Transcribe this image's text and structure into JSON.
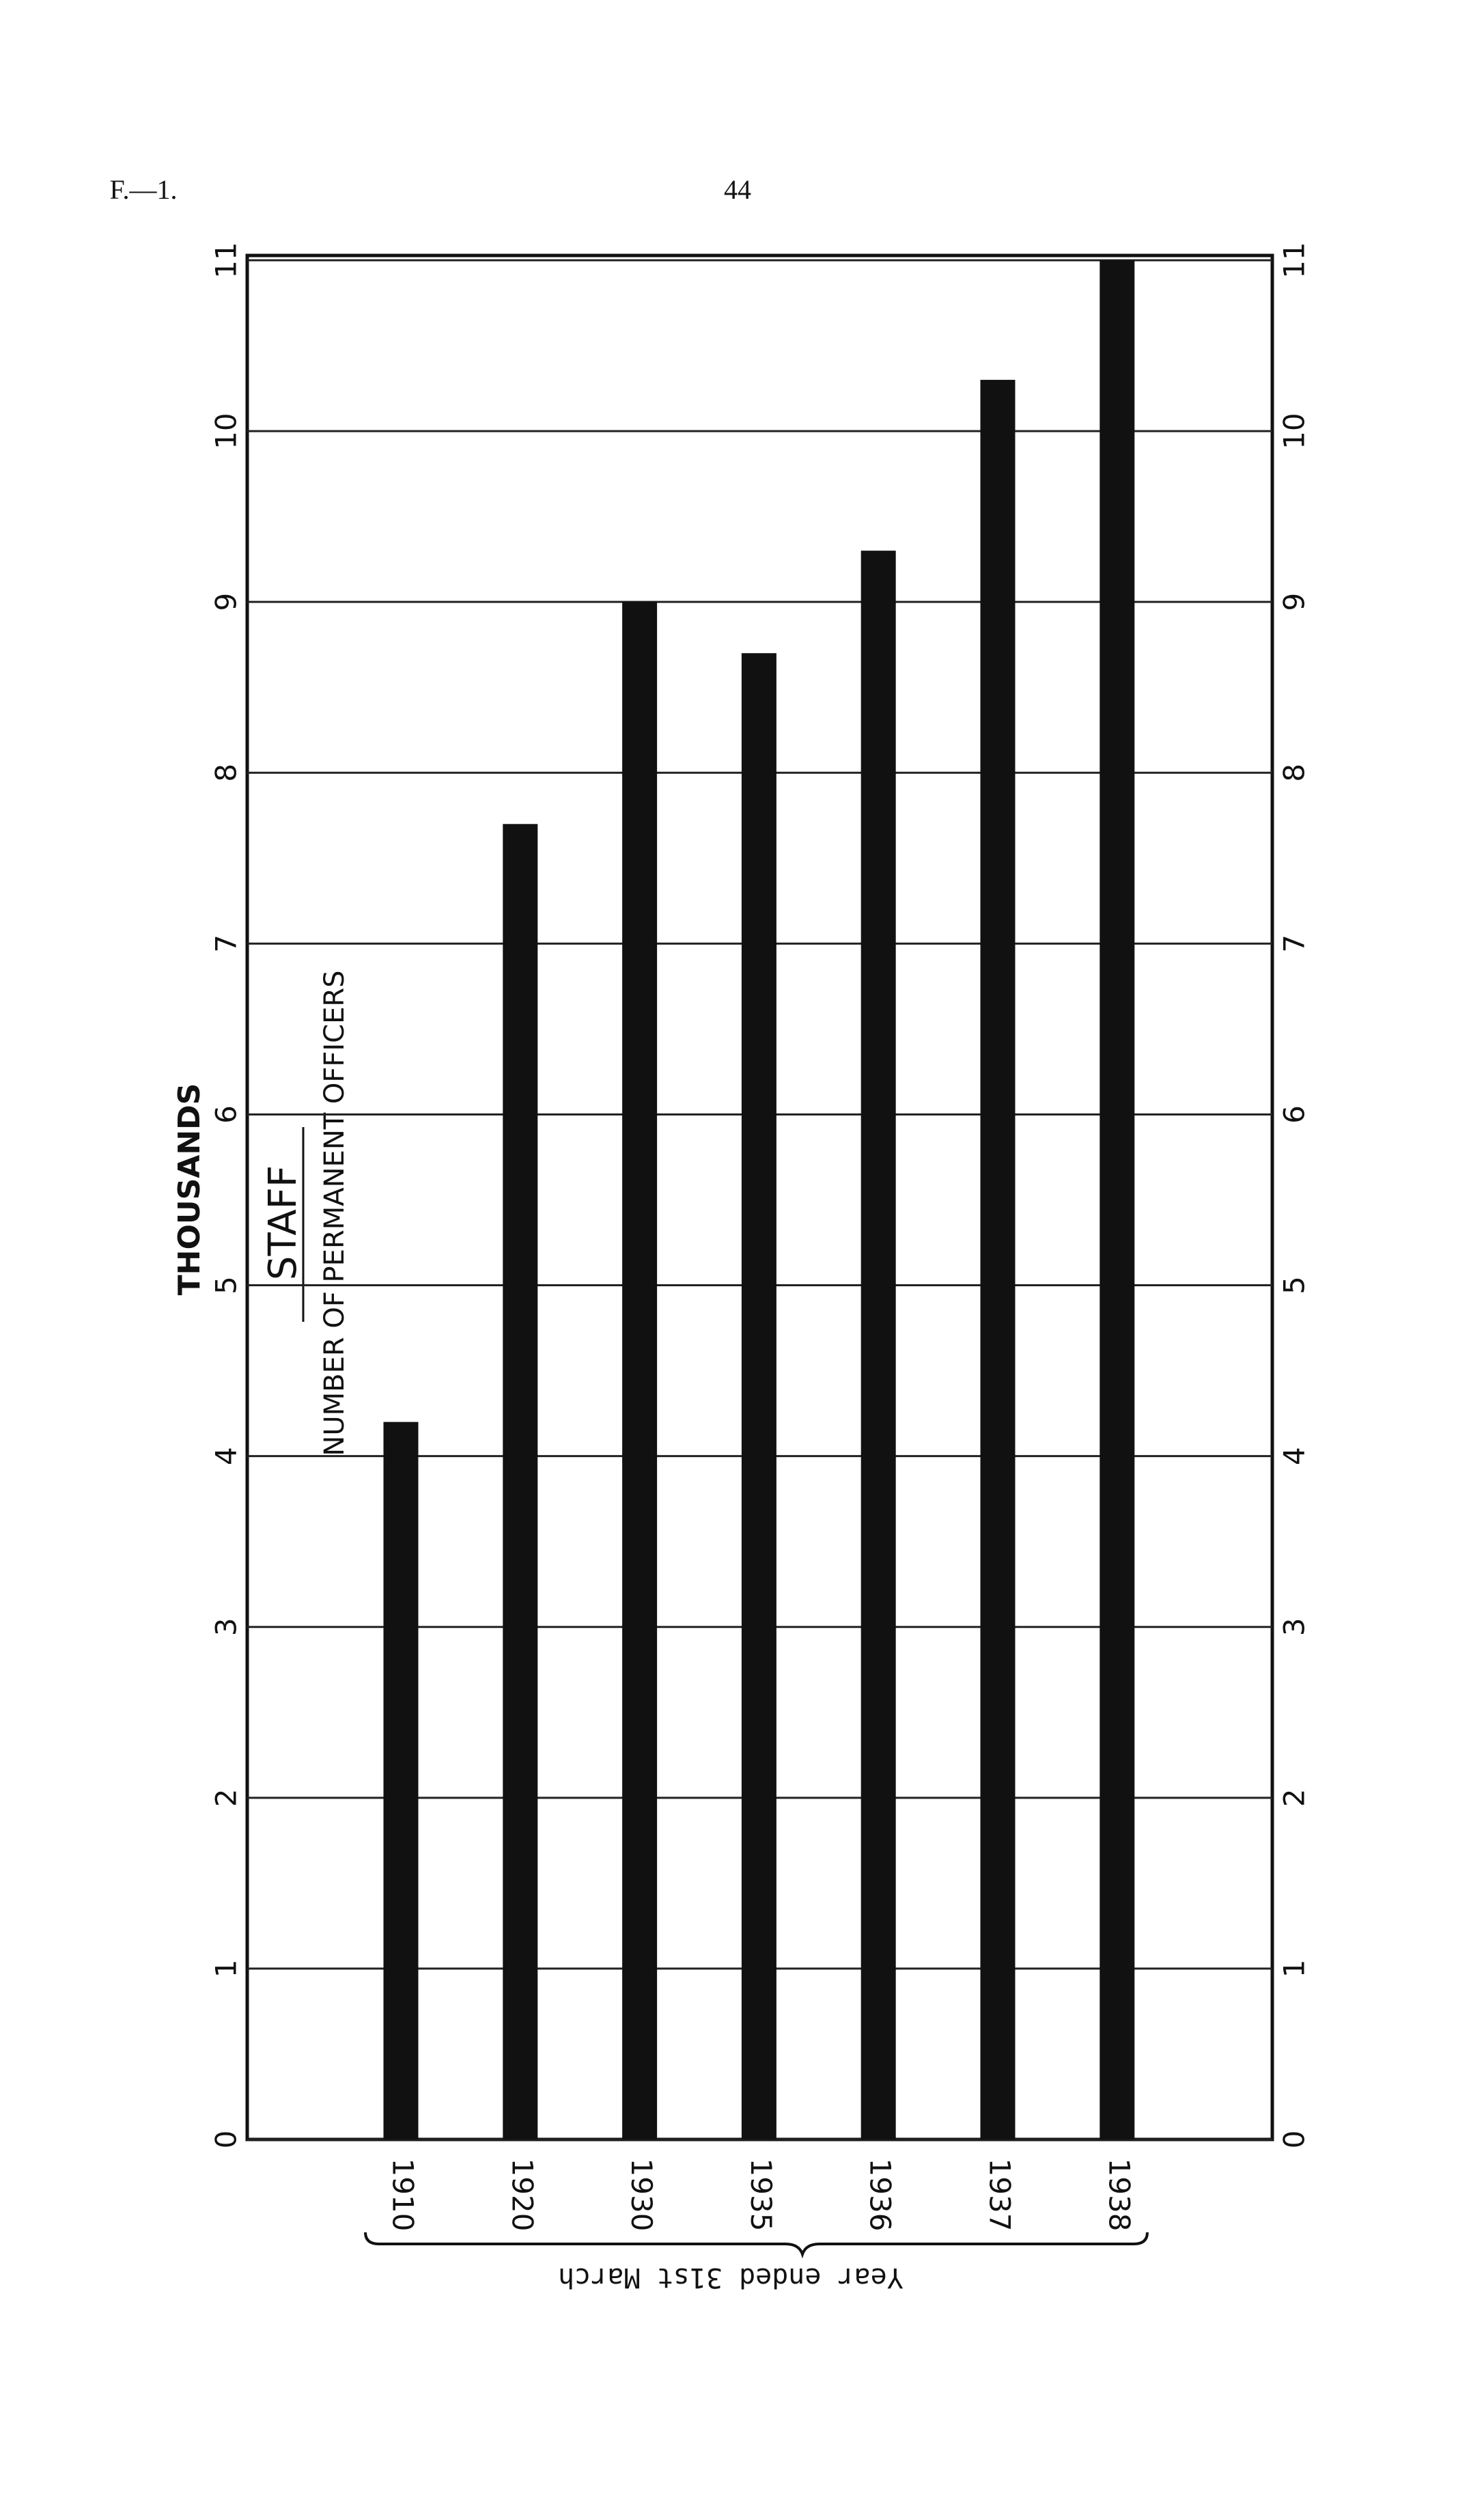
{
  "header": {
    "section": "F.—1.",
    "page": "44"
  },
  "chart_data": {
    "type": "bar",
    "title": "STAFF",
    "subtitle": "NUMBER OF PERMANENT OFFICERS",
    "y_label": "THOUSANDS",
    "x_label": "Year ended 31st March",
    "categories": [
      "1910",
      "1920",
      "1930",
      "1935",
      "1936",
      "1937",
      "1938"
    ],
    "values": [
      4.2,
      7.7,
      9.0,
      8.7,
      9.3,
      10.3,
      11.0
    ],
    "color": "#111111",
    "ylim": [
      0,
      11
    ],
    "yticks": [
      0,
      1,
      2,
      3,
      4,
      5,
      6,
      7,
      8,
      9,
      10,
      11
    ],
    "grid": true
  }
}
